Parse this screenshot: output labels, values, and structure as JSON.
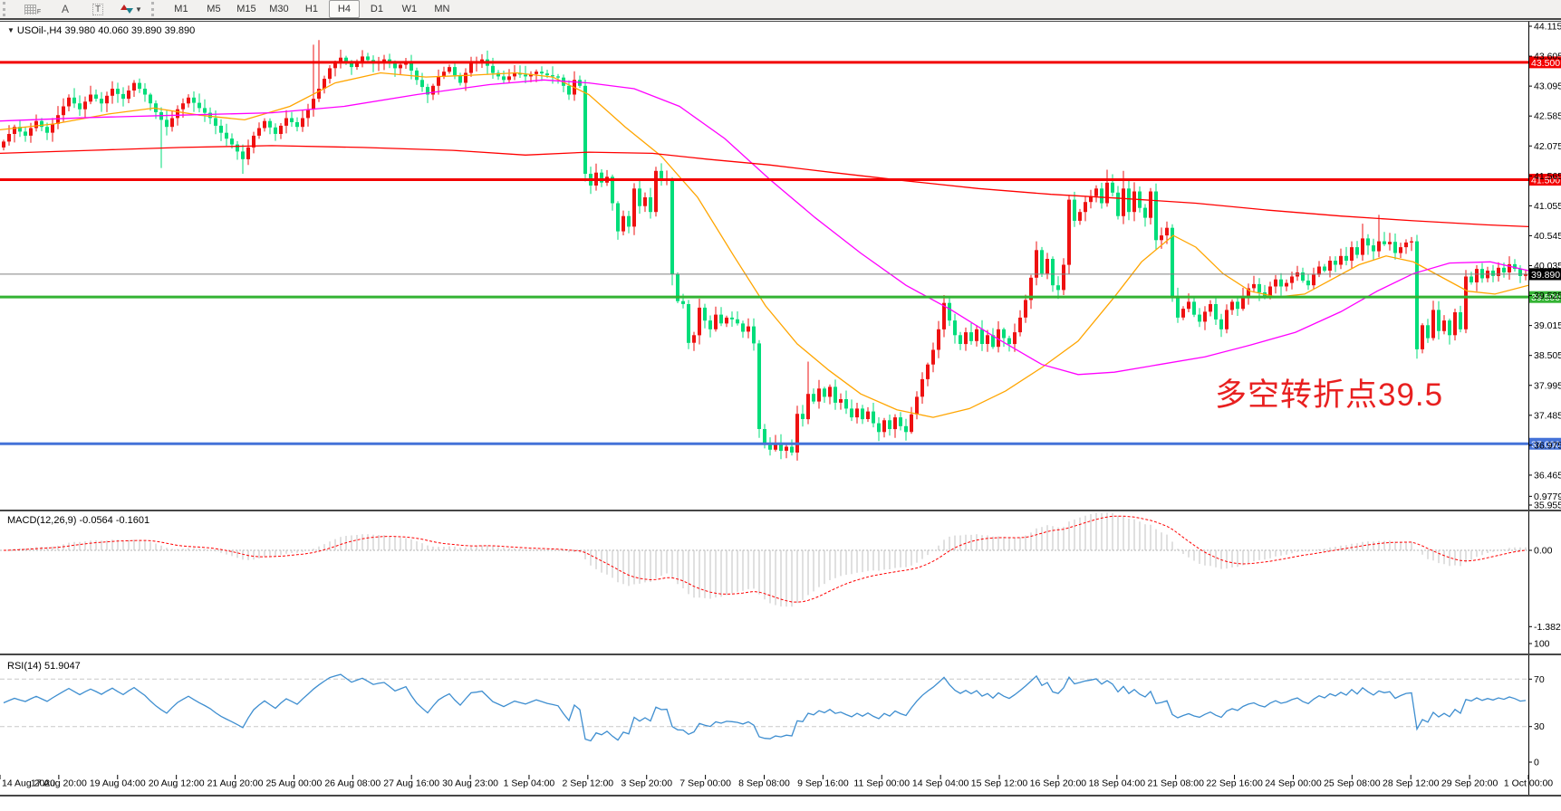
{
  "toolbar": {
    "tools": [
      {
        "name": "fibonacci-tool",
        "glyph": "F"
      },
      {
        "name": "text-tool",
        "glyph": "A"
      },
      {
        "name": "text-label-tool",
        "glyph": "T"
      },
      {
        "name": "arrows-tool",
        "glyph": "arrows"
      }
    ],
    "timeframes": [
      "M1",
      "M5",
      "M15",
      "M30",
      "H1",
      "H4",
      "D1",
      "W1",
      "MN"
    ],
    "active_timeframe": "H4"
  },
  "chart": {
    "title": "USOil-,H4",
    "ohlc": "39.980 40.060 39.890 39.890"
  },
  "annotation": {
    "text": "多空转折点39.5",
    "color": "#e82020"
  },
  "price_axis": {
    "ticks": [
      "44.115",
      "43.605",
      "43.095",
      "42.585",
      "42.075",
      "41.565",
      "41.055",
      "40.545",
      "40.035",
      "39.525",
      "39.015",
      "38.505",
      "37.995",
      "37.485",
      "36.975",
      "36.465",
      "35.955"
    ],
    "top_value": 44.115,
    "bottom_value": 35.955
  },
  "levels": [
    {
      "label": "43.500",
      "price": 43.5,
      "color": "#f20000",
      "width": 3
    },
    {
      "label": "41.500",
      "price": 41.5,
      "color": "#f20000",
      "width": 3
    },
    {
      "label": "39.890",
      "price": 39.89,
      "color": "#808080",
      "width": 1,
      "label_bg": "#000000"
    },
    {
      "label": "39.500",
      "price": 39.5,
      "color": "#33b333",
      "width": 3
    },
    {
      "label": "37.000",
      "price": 37.0,
      "color": "#4472d8",
      "width": 3
    }
  ],
  "date_axis": {
    "labels": [
      "14 Aug 2020",
      "17 Aug 20:00",
      "19 Aug 04:00",
      "20 Aug 12:00",
      "21 Aug 20:00",
      "25 Aug 00:00",
      "26 Aug 08:00",
      "27 Aug 16:00",
      "30 Aug 23:00",
      "1 Sep 04:00",
      "2 Sep 12:00",
      "3 Sep 20:00",
      "7 Sep 00:00",
      "8 Sep 08:00",
      "9 Sep 16:00",
      "11 Sep 00:00",
      "14 Sep 04:00",
      "15 Sep 12:00",
      "16 Sep 20:00",
      "18 Sep 04:00",
      "21 Sep 08:00",
      "22 Sep 16:00",
      "24 Sep 00:00",
      "25 Sep 08:00",
      "28 Sep 12:00",
      "29 Sep 20:00",
      "1 Oct 00:00"
    ]
  },
  "macd": {
    "label": "MACD(12,26,9)",
    "values": "-0.0564 -0.1601",
    "params": [
      12,
      26,
      9
    ],
    "axis": [
      {
        "label": "0.9779",
        "value": 0.9779
      },
      {
        "label": "0.00",
        "value": 0.0
      },
      {
        "label": "-1.382",
        "value": -1.382
      }
    ],
    "hist_color": "#c0c0c0",
    "signal_color": "#ff0000"
  },
  "rsi": {
    "label": "RSI(14)",
    "value": "51.9047",
    "period": 14,
    "axis": [
      {
        "label": "100",
        "value": 100
      },
      {
        "label": "70",
        "value": 70
      },
      {
        "label": "30",
        "value": 30
      },
      {
        "label": "0",
        "value": 0
      }
    ],
    "level_lines": [
      70,
      30
    ],
    "line_color": "#3e8ed0"
  },
  "chart_data": {
    "type": "candlestick",
    "symbol": "USOil",
    "period": "H4",
    "bull_color": "#ee1111",
    "bear_color": "#00dd7a",
    "closes": [
      42.15,
      42.28,
      42.4,
      42.32,
      42.25,
      42.38,
      42.5,
      42.4,
      42.3,
      42.45,
      42.6,
      42.75,
      42.9,
      42.8,
      42.7,
      42.83,
      42.95,
      42.88,
      42.8,
      42.93,
      43.05,
      42.96,
      42.88,
      43.02,
      43.15,
      43.05,
      42.95,
      42.8,
      42.65,
      42.52,
      42.4,
      42.55,
      42.7,
      42.8,
      42.9,
      42.81,
      42.72,
      42.64,
      42.55,
      42.42,
      42.3,
      42.2,
      42.1,
      41.98,
      41.85,
      42.05,
      42.25,
      42.38,
      42.5,
      42.39,
      42.28,
      42.42,
      42.55,
      42.48,
      42.4,
      42.55,
      42.7,
      42.88,
      43.05,
      43.22,
      43.4,
      43.49,
      43.58,
      43.5,
      43.42,
      43.51,
      43.6,
      43.54,
      43.48,
      43.52,
      43.55,
      43.48,
      43.4,
      43.46,
      43.52,
      43.36,
      43.2,
      43.08,
      42.95,
      43.1,
      43.25,
      43.34,
      43.42,
      43.28,
      43.15,
      43.32,
      43.5,
      43.52,
      43.55,
      43.44,
      43.32,
      43.26,
      43.2,
      43.26,
      43.32,
      43.29,
      43.26,
      43.3,
      43.34,
      43.31,
      43.28,
      43.26,
      43.24,
      43.1,
      42.95,
      43.2,
      43.1,
      41.6,
      41.4,
      41.62,
      41.45,
      41.55,
      41.1,
      40.62,
      40.88,
      40.7,
      41.35,
      41.05,
      41.2,
      40.95,
      41.65,
      41.48,
      41.5,
      39.89,
      39.43,
      39.38,
      38.72,
      38.85,
      39.32,
      39.1,
      38.95,
      39.2,
      39.05,
      39.15,
      39.12,
      39.05,
      38.91,
      39.0,
      38.71,
      37.25,
      36.98,
      36.9,
      37.02,
      36.88,
      36.95,
      36.85,
      37.51,
      37.42,
      37.85,
      37.72,
      37.94,
      37.8,
      37.97,
      37.7,
      37.76,
      37.6,
      37.45,
      37.6,
      37.42,
      37.55,
      37.35,
      37.2,
      37.4,
      37.25,
      37.45,
      37.3,
      37.2,
      37.5,
      37.8,
      38.1,
      38.35,
      38.6,
      38.95,
      39.4,
      39.1,
      38.85,
      38.7,
      38.9,
      38.75,
      38.95,
      38.7,
      38.85,
      38.65,
      38.95,
      38.8,
      38.7,
      38.9,
      39.15,
      39.45,
      39.83,
      40.3,
      39.9,
      40.15,
      39.7,
      39.62,
      40.05,
      41.16,
      40.8,
      40.95,
      41.12,
      41.22,
      41.35,
      41.1,
      41.45,
      41.28,
      40.88,
      41.35,
      40.95,
      41.3,
      41.02,
      40.85,
      41.3,
      40.47,
      40.55,
      40.68,
      39.5,
      39.15,
      39.3,
      39.42,
      39.2,
      39.08,
      39.25,
      39.38,
      39.12,
      38.95,
      39.28,
      39.42,
      39.3,
      39.52,
      39.65,
      39.72,
      39.58,
      39.5,
      39.68,
      39.8,
      39.68,
      39.74,
      39.85,
      39.92,
      39.78,
      39.7,
      39.88,
      40.02,
      39.95,
      40.12,
      40.05,
      40.2,
      40.12,
      40.35,
      40.22,
      40.5,
      40.38,
      40.28,
      40.45,
      40.4,
      40.44,
      40.25,
      40.35,
      40.43,
      40.45,
      38.61,
      39.02,
      38.8,
      39.28,
      38.92,
      39.1,
      38.85,
      39.24,
      38.95,
      39.85,
      39.75,
      39.98,
      39.82,
      39.95,
      39.86,
      40.0,
      39.92,
      40.06,
      39.98,
      39.86,
      39.89
    ],
    "first_open": 42.05,
    "wick_high_overrides": {
      "57": 43.8,
      "58": 43.88,
      "120": 41.72,
      "148": 38.4,
      "190": 40.45,
      "203": 41.67,
      "206": 41.65,
      "250": 40.75,
      "253": 40.9
    },
    "wick_low_overrides": {
      "29": 41.7,
      "44": 41.6,
      "123": 39.7,
      "139": 37.1,
      "141": 36.8,
      "145": 36.8,
      "212": 40.3,
      "260": 38.45
    },
    "moving_averages": [
      {
        "name": "ma-fast-orange",
        "color": "#ffa500",
        "points": [
          [
            0,
            42.35
          ],
          [
            60,
            42.45
          ],
          [
            120,
            42.62
          ],
          [
            170,
            42.72
          ],
          [
            220,
            42.6
          ],
          [
            270,
            42.52
          ],
          [
            320,
            42.75
          ],
          [
            370,
            43.15
          ],
          [
            420,
            43.32
          ],
          [
            470,
            43.25
          ],
          [
            520,
            43.28
          ],
          [
            570,
            43.32
          ],
          [
            610,
            43.25
          ],
          [
            650,
            42.95
          ],
          [
            690,
            42.4
          ],
          [
            730,
            41.9
          ],
          [
            770,
            41.2
          ],
          [
            810,
            40.2
          ],
          [
            845,
            39.35
          ],
          [
            880,
            38.7
          ],
          [
            915,
            38.25
          ],
          [
            950,
            37.85
          ],
          [
            990,
            37.58
          ],
          [
            1030,
            37.45
          ],
          [
            1070,
            37.6
          ],
          [
            1110,
            37.9
          ],
          [
            1150,
            38.3
          ],
          [
            1190,
            38.75
          ],
          [
            1230,
            39.5
          ],
          [
            1260,
            40.1
          ],
          [
            1295,
            40.55
          ],
          [
            1320,
            40.35
          ],
          [
            1350,
            39.9
          ],
          [
            1380,
            39.6
          ],
          [
            1410,
            39.5
          ],
          [
            1440,
            39.55
          ],
          [
            1470,
            39.8
          ],
          [
            1500,
            40.05
          ],
          [
            1530,
            40.2
          ],
          [
            1560,
            40.1
          ],
          [
            1590,
            39.85
          ],
          [
            1620,
            39.6
          ],
          [
            1650,
            39.55
          ],
          [
            1687,
            39.7
          ]
        ]
      },
      {
        "name": "ma-mid-magenta",
        "color": "#ff00ff",
        "points": [
          [
            0,
            42.5
          ],
          [
            100,
            42.56
          ],
          [
            200,
            42.6
          ],
          [
            300,
            42.64
          ],
          [
            380,
            42.75
          ],
          [
            460,
            42.95
          ],
          [
            540,
            43.12
          ],
          [
            600,
            43.2
          ],
          [
            650,
            43.15
          ],
          [
            700,
            43.05
          ],
          [
            750,
            42.75
          ],
          [
            800,
            42.2
          ],
          [
            850,
            41.5
          ],
          [
            900,
            40.85
          ],
          [
            950,
            40.25
          ],
          [
            1000,
            39.7
          ],
          [
            1050,
            39.28
          ],
          [
            1100,
            38.8
          ],
          [
            1150,
            38.35
          ],
          [
            1190,
            38.18
          ],
          [
            1230,
            38.22
          ],
          [
            1280,
            38.35
          ],
          [
            1330,
            38.48
          ],
          [
            1380,
            38.68
          ],
          [
            1430,
            38.9
          ],
          [
            1480,
            39.25
          ],
          [
            1520,
            39.6
          ],
          [
            1560,
            39.9
          ],
          [
            1600,
            40.08
          ],
          [
            1645,
            40.1
          ],
          [
            1687,
            39.95
          ]
        ]
      },
      {
        "name": "ma-slow-red",
        "color": "#ff0000",
        "points": [
          [
            0,
            41.95
          ],
          [
            100,
            42.0
          ],
          [
            200,
            42.05
          ],
          [
            300,
            42.08
          ],
          [
            400,
            42.05
          ],
          [
            500,
            42.0
          ],
          [
            580,
            41.92
          ],
          [
            650,
            41.97
          ],
          [
            720,
            41.95
          ],
          [
            780,
            41.85
          ],
          [
            850,
            41.75
          ],
          [
            920,
            41.62
          ],
          [
            1000,
            41.48
          ],
          [
            1080,
            41.35
          ],
          [
            1160,
            41.25
          ],
          [
            1240,
            41.18
          ],
          [
            1320,
            41.1
          ],
          [
            1400,
            40.98
          ],
          [
            1480,
            40.88
          ],
          [
            1560,
            40.8
          ],
          [
            1640,
            40.73
          ],
          [
            1687,
            40.7
          ]
        ]
      }
    ]
  }
}
